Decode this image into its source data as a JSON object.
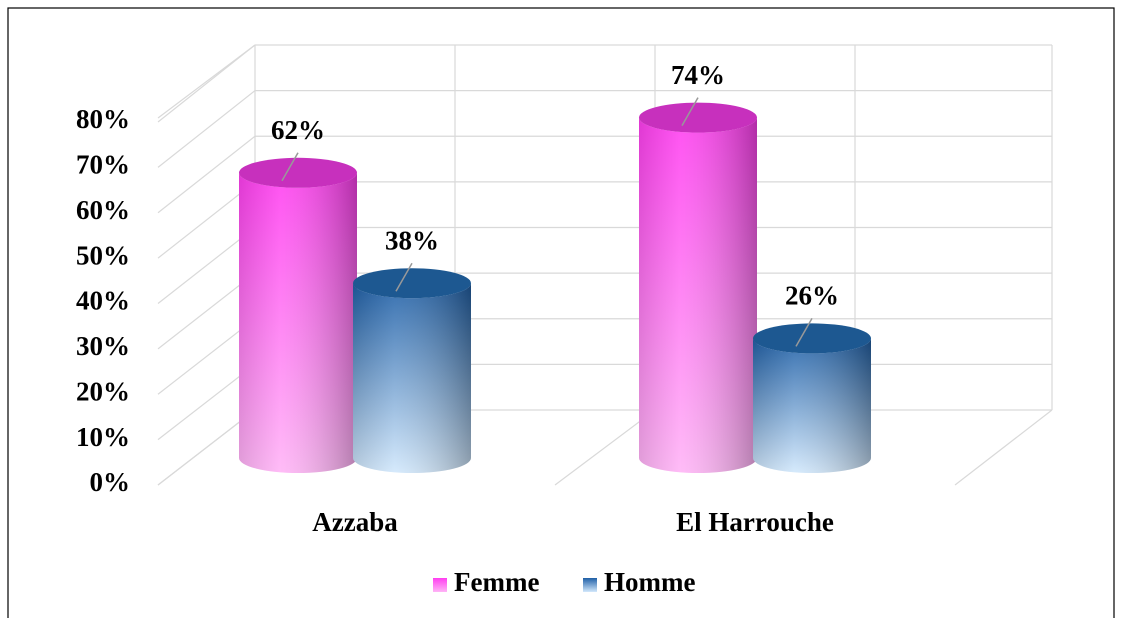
{
  "chart_data": {
    "type": "bar",
    "categories": [
      "Azzaba",
      "El Harrouche"
    ],
    "series": [
      {
        "name": "Femme",
        "color": "#ff3ef0",
        "values": [
          62,
          74
        ],
        "value_labels": [
          "62%",
          "74%"
        ]
      },
      {
        "name": "Homme",
        "color": "#2e75b6",
        "values": [
          38,
          26
        ],
        "value_labels": [
          "38%",
          "26%"
        ]
      }
    ],
    "ylim": [
      0,
      80
    ],
    "yticks": [
      {
        "value": 0,
        "label": "0%"
      },
      {
        "value": 10,
        "label": "10%"
      },
      {
        "value": 20,
        "label": "20%"
      },
      {
        "value": 30,
        "label": "30%"
      },
      {
        "value": 40,
        "label": "40%"
      },
      {
        "value": 50,
        "label": "50%"
      },
      {
        "value": 60,
        "label": "60%"
      },
      {
        "value": 70,
        "label": "70%"
      },
      {
        "value": 80,
        "label": "80%"
      }
    ],
    "grid": true,
    "legend": "bottom"
  }
}
